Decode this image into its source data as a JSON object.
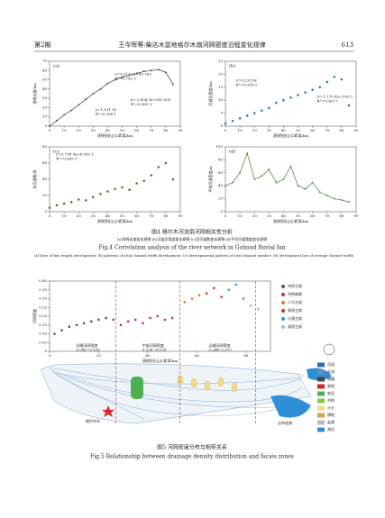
{
  "header": {
    "issue": "第2期",
    "title": "王今晖等:柴达木盆地格尔木扇河网密度沿程变化规律",
    "page": "613"
  },
  "chart_data": [
    {
      "type": "line",
      "label": "(a)",
      "xlabel": "测线到出山口距离/km",
      "ylabel": "测线长度/km",
      "color": "#3a3a3a",
      "xlim": [
        0,
        90
      ],
      "xticks": [
        0,
        10,
        20,
        30,
        40,
        50,
        60,
        70,
        80,
        90
      ],
      "ylim": [
        0,
        70
      ],
      "yticks": [
        0,
        10,
        20,
        30,
        40,
        50,
        60,
        70
      ],
      "annotations": [
        "y=1.151 1x",
        "R²=0.998 1",
        "y=0.513 2x+43.762",
        "R²=0.755 5",
        "y=-2.834 5x+281.000",
        "R²=0.965 9"
      ],
      "series": [
        {
          "color": "#3a3a3a",
          "x": [
            0,
            5,
            10,
            15,
            20,
            25,
            30,
            35,
            40,
            45,
            50,
            55,
            60,
            65,
            70,
            75,
            80,
            85
          ],
          "values": [
            0,
            6,
            12,
            17,
            23,
            29,
            35,
            40,
            46,
            50,
            53,
            55,
            57,
            59,
            60,
            61,
            58,
            45
          ]
        }
      ]
    },
    {
      "type": "scatter",
      "label": "(b)",
      "xlabel": "测线到出山口距离/km",
      "ylabel": "河道总宽度/km",
      "xlim": [
        0,
        90
      ],
      "xticks": [
        0,
        10,
        20,
        30,
        40,
        50,
        60,
        70,
        80,
        90
      ],
      "ylim": [
        0,
        25
      ],
      "yticks": [
        0,
        5,
        10,
        15,
        20,
        25
      ],
      "annotations": [
        "y=0.233 9x",
        "R²=0.914 0",
        "y=-1.170 4x+106.3",
        "R²=0.963 7"
      ],
      "series": [
        {
          "color": "#3b78c4",
          "x": [
            0,
            5,
            10,
            15,
            20,
            25,
            30,
            35,
            40,
            45,
            50,
            55,
            60,
            65,
            70,
            75,
            80,
            85
          ],
          "values": [
            1,
            2,
            3,
            4,
            5,
            6,
            7,
            9,
            10,
            11,
            12,
            13,
            14,
            15,
            17,
            19,
            18,
            8
          ]
        }
      ]
    },
    {
      "type": "scatter",
      "label": "(c)",
      "xlabel": "测线到出山口距离/km",
      "ylabel": "总河道数/条",
      "xlim": [
        0,
        90
      ],
      "xticks": [
        0,
        10,
        20,
        30,
        40,
        50,
        60,
        70,
        80,
        90
      ],
      "ylim": [
        0,
        80
      ],
      "yticks": [
        0,
        20,
        40,
        60,
        80
      ],
      "annotations": [
        "y=0.798 9x+8.583 1",
        "R²=0.643 3"
      ],
      "series": [
        {
          "color": "#4f7a32",
          "x": [
            0,
            5,
            10,
            15,
            20,
            25,
            30,
            35,
            40,
            45,
            50,
            55,
            60,
            65,
            70,
            75,
            80,
            85
          ],
          "values": [
            5,
            8,
            10,
            12,
            15,
            14,
            18,
            22,
            25,
            28,
            30,
            27,
            35,
            38,
            45,
            55,
            60,
            40
          ]
        }
      ]
    },
    {
      "type": "line",
      "label": "(d)",
      "xlabel": "测线到出山口距离/km",
      "ylabel": "平均河道宽度/m",
      "xlim": [
        0,
        90
      ],
      "xticks": [
        0,
        10,
        20,
        30,
        40,
        50,
        60,
        70,
        80,
        90
      ],
      "ylim": [
        0,
        100
      ],
      "yticks": [
        0,
        20,
        40,
        60,
        80,
        100
      ],
      "annotations": [],
      "series": [
        {
          "color": "#4f7a32",
          "x": [
            0,
            5,
            10,
            15,
            20,
            25,
            30,
            35,
            40,
            45,
            50,
            55,
            60,
            65,
            70,
            75,
            80,
            85
          ],
          "values": [
            40,
            45,
            60,
            90,
            50,
            55,
            65,
            45,
            50,
            70,
            40,
            35,
            45,
            30,
            25,
            20,
            18,
            15
          ]
        }
      ]
    },
    {
      "type": "scatter",
      "label": "",
      "xlabel": "测线到出山口距离/km",
      "ylabel": "河网密度",
      "xlim": [
        0,
        90
      ],
      "xticks": [
        0,
        20,
        40,
        60,
        80
      ],
      "ylim": [
        0,
        0.4
      ],
      "yticks": [
        {
          "value": 0,
          "label": "0"
        },
        {
          "value": 0.05,
          "label": "0.05"
        },
        {
          "value": 0.1,
          "label": "0.10"
        },
        {
          "value": 0.15,
          "label": "0.15"
        },
        {
          "value": 0.2,
          "label": "0.20"
        },
        {
          "value": 0.25,
          "label": "0.25"
        },
        {
          "value": 0.3,
          "label": "0.30"
        },
        {
          "value": 0.35,
          "label": "0.35"
        },
        {
          "value": 0.4,
          "label": "0.40"
        }
      ],
      "annotations": [
        "近端河网密度",
        "0.088~0.198",
        "中部河网密度",
        "0.136~0.198",
        "远端河网密度",
        "0.244~0.377"
      ],
      "series": [
        {
          "name": "冲积主扇",
          "color": "#6a3d9a",
          "x": [
            2,
            5,
            8,
            11,
            14,
            17,
            20,
            23,
            26
          ],
          "values": [
            0.1,
            0.12,
            0.14,
            0.15,
            0.16,
            0.17,
            0.18,
            0.19,
            0.18
          ]
        },
        {
          "name": "冲积扇缘",
          "color": "#b5307a",
          "x": [
            29,
            32,
            35,
            38,
            41,
            44,
            47,
            50
          ],
          "values": [
            0.15,
            0.17,
            0.18,
            0.16,
            0.19,
            0.2,
            0.18,
            0.19
          ]
        },
        {
          "name": "人为主扇",
          "color": "#e8742c",
          "x": [
            55,
            58,
            61
          ],
          "values": [
            0.28,
            0.3,
            0.32
          ]
        },
        {
          "name": "泉线主扇",
          "color": "#c0392b",
          "x": [
            64,
            67,
            70
          ],
          "values": [
            0.33,
            0.36,
            0.31
          ]
        },
        {
          "name": "沙漠主扇",
          "color": "#3a8fd6",
          "x": [
            73,
            76,
            79
          ],
          "values": [
            0.35,
            0.38,
            0.3
          ]
        },
        {
          "name": "湖滨主扇",
          "color": "#8fc0e8",
          "x": [
            82,
            85
          ],
          "values": [
            0.26,
            0.24
          ]
        }
      ]
    }
  ],
  "captions": {
    "fig4_cn": "图4 格尔木河流扇河网相关性分析",
    "fig4_sub_cn": "(a)测线长度变化规律;(b)河道总宽度变化规律;(c)总河道数变化规律;(d)平均河道宽度变化规律",
    "fig4_en": "Fig.4 Correlation analysis of the river network in Golmud fluvial fan",
    "fig4_sub_en": "(a) lines of line length development; (b) patterns of total channel width development; (c) developmental pattern of total channel number; (d) development law of average channel width",
    "fig5_cn": "图5 河网密度分布与相带关系",
    "fig5_en": "Fig.5 Relationship between drainage density distribution and facies zones"
  },
  "map": {
    "city": "格尔木市",
    "lake": "达布逊湖",
    "legend": [
      "河流",
      "支流",
      "城镇",
      "泉线",
      "农业",
      "洪积",
      "沙丘",
      "耕地",
      "盐湖",
      "湖泊"
    ]
  }
}
